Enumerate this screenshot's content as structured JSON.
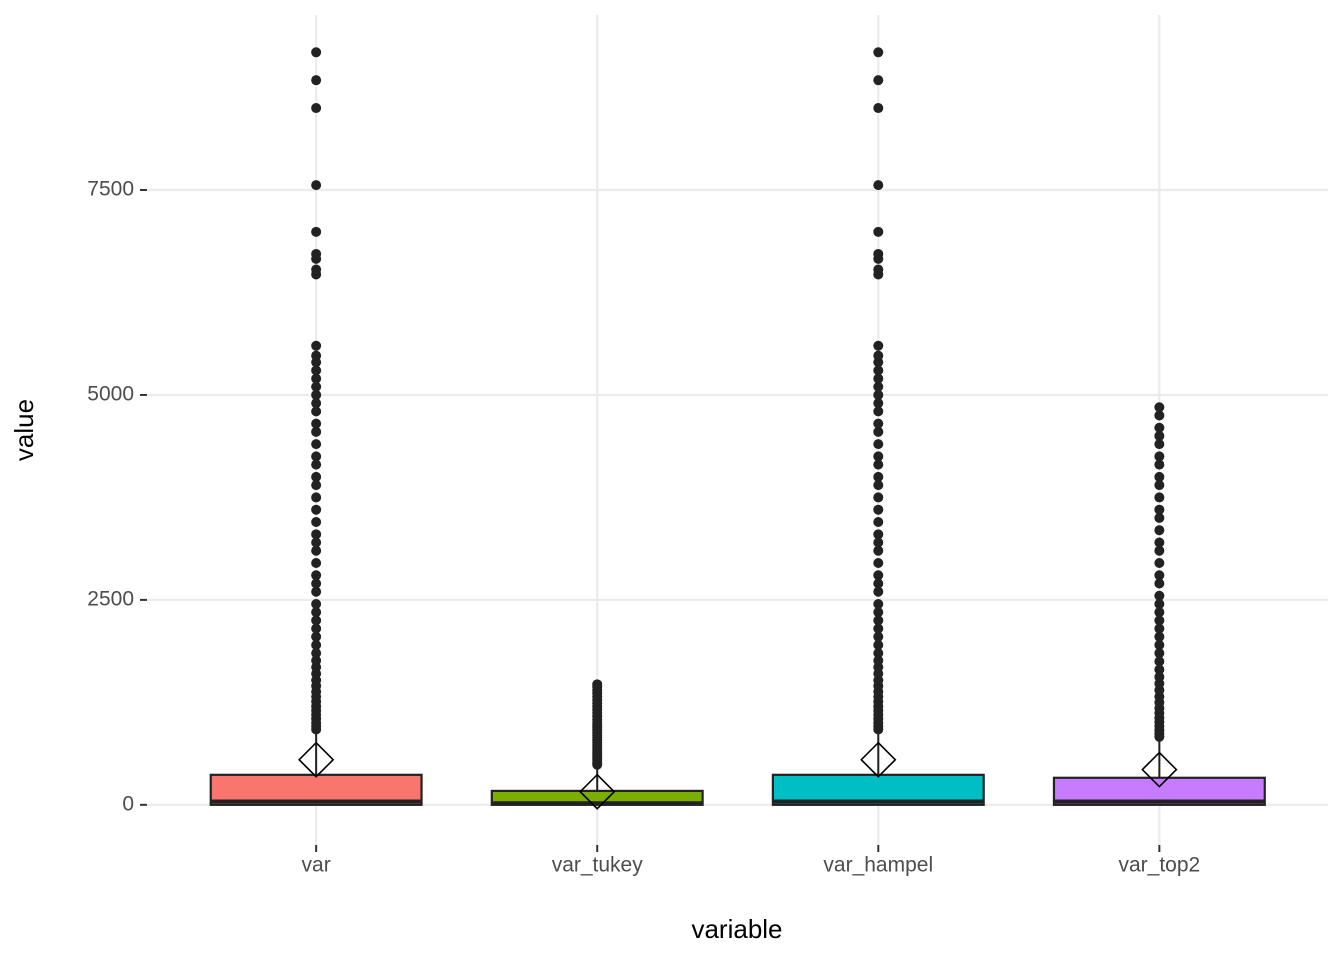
{
  "chart_data": {
    "type": "box",
    "x_label": "variable",
    "y_label": "value",
    "categories": [
      "var",
      "var_tukey",
      "var_hampel",
      "var_top2"
    ],
    "colors": [
      "#f8766d",
      "#7cae00",
      "#00bfc4",
      "#c77cff"
    ],
    "boxes": [
      {
        "whisker_low": 0,
        "q1": 0,
        "median": 40,
        "q3": 366,
        "whisker_high": 900,
        "mean": 550,
        "outliers": [
          920,
          960,
          1000,
          1050,
          1100,
          1150,
          1200,
          1260,
          1320,
          1380,
          1450,
          1520,
          1600,
          1680,
          1760,
          1850,
          1950,
          2050,
          2150,
          2250,
          2350,
          2450,
          2600,
          2700,
          2800,
          2950,
          3100,
          3200,
          3300,
          3450,
          3600,
          3750,
          3900,
          4000,
          4150,
          4250,
          4400,
          4550,
          4650,
          4800,
          4900,
          5000,
          5100,
          5200,
          5300,
          5400,
          5480,
          5600,
          6470,
          6530,
          6660,
          6720,
          6990,
          7560,
          8500,
          8840,
          9180
        ]
      },
      {
        "whisker_low": 0,
        "q1": 0,
        "median": 20,
        "q3": 170,
        "whisker_high": 470,
        "mean": 160,
        "outliers": [
          490,
          520,
          550,
          580,
          610,
          640,
          670,
          700,
          730,
          760,
          790,
          820,
          850,
          880,
          910,
          940,
          970,
          1000,
          1040,
          1080,
          1120,
          1160,
          1200,
          1240,
          1280,
          1320,
          1360,
          1400,
          1440,
          1470
        ]
      },
      {
        "whisker_low": 0,
        "q1": 0,
        "median": 40,
        "q3": 366,
        "whisker_high": 900,
        "mean": 550,
        "outliers": [
          920,
          960,
          1000,
          1050,
          1100,
          1150,
          1200,
          1260,
          1320,
          1380,
          1450,
          1520,
          1600,
          1680,
          1760,
          1850,
          1950,
          2050,
          2150,
          2250,
          2350,
          2450,
          2600,
          2700,
          2800,
          2950,
          3100,
          3200,
          3300,
          3450,
          3600,
          3750,
          3900,
          4000,
          4150,
          4250,
          4400,
          4550,
          4650,
          4800,
          4900,
          5000,
          5100,
          5200,
          5300,
          5400,
          5480,
          5600,
          6470,
          6530,
          6660,
          6720,
          6990,
          7560,
          8500,
          8840,
          9180
        ]
      },
      {
        "whisker_low": 0,
        "q1": 0,
        "median": 40,
        "q3": 330,
        "whisker_high": 800,
        "mean": 430,
        "outliers": [
          830,
          870,
          910,
          960,
          1010,
          1060,
          1120,
          1180,
          1250,
          1320,
          1400,
          1480,
          1560,
          1650,
          1750,
          1850,
          1950,
          2050,
          2150,
          2250,
          2350,
          2450,
          2550,
          2700,
          2800,
          2950,
          3100,
          3200,
          3350,
          3500,
          3600,
          3750,
          3900,
          4000,
          4150,
          4250,
          4400,
          4500,
          4600,
          4750,
          4850
        ]
      }
    ],
    "ylim": [
      -490,
      9635
    ],
    "yticks": [
      0,
      2500,
      5000,
      7500
    ],
    "grid": true
  }
}
